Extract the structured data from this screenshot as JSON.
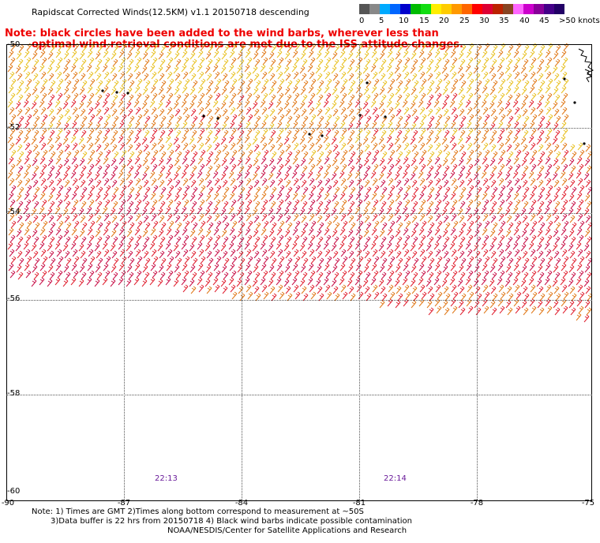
{
  "header": {
    "title": "Rapidscat Corrected Winds(12.5KM) v1.1 20150718 descending",
    "colorbar_labels": [
      "0",
      "5",
      "10",
      "15",
      "20",
      "25",
      "30",
      "35",
      "40",
      "45",
      ">50 knots"
    ],
    "colorbar_colors": [
      "#555555",
      "#888888",
      "#00aaff",
      "#0066ff",
      "#0000cc",
      "#00bb00",
      "#11dd11",
      "#ffee00",
      "#ffcc00",
      "#ff9900",
      "#ff6600",
      "#ff0000",
      "#dd0033",
      "#bb2200",
      "#884422",
      "#ff66ff",
      "#cc00cc",
      "#880099",
      "#440088",
      "#220066"
    ]
  },
  "note": {
    "line1": "Note: black circles have been added to the wind barbs, wherever less than",
    "line2": "optimal wind retrieval conditions are met due to the ISS attitude changes."
  },
  "axes": {
    "lat_labels": [
      "-50",
      "-52",
      "-54",
      "-56",
      "-58",
      "-60"
    ],
    "lon_labels": [
      "-90",
      "-87",
      "-84",
      "-81",
      "-78",
      "-75"
    ]
  },
  "times": [
    "22:13",
    "22:14"
  ],
  "footer": {
    "line1": "Note: 1) Times are GMT 2)Times along bottom correspond to measurement at ~50S",
    "line2": "3)Data buffer is 22 hrs from 20150718 4) Black wind barbs indicate possible contamination",
    "line3": "NOAA/NESDIS/Center for Satellite Applications and Research"
  },
  "colors": {
    "barb_yellow": "#e8c020",
    "barb_orange": "#e07818",
    "barb_red": "#e02030",
    "barb_crimson": "#c81048",
    "note_red": "#ee0000",
    "time_purple": "#6a1b9a"
  }
}
